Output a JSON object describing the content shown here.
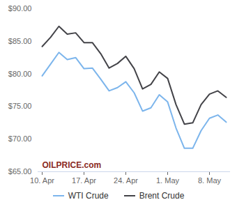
{
  "chart_data": {
    "type": "line",
    "categories": [
      "10. Apr",
      null,
      null,
      null,
      null,
      "17. Apr",
      null,
      null,
      null,
      null,
      "24. Apr",
      null,
      null,
      null,
      null,
      "1. May",
      null,
      null,
      null,
      null,
      "8. May",
      null,
      null
    ],
    "series": [
      {
        "name": "WTI Crude",
        "color": "#7cb5ec",
        "values": [
          79.7,
          81.5,
          83.3,
          82.2,
          82.5,
          80.8,
          80.9,
          79.2,
          77.4,
          77.9,
          78.8,
          77.1,
          74.3,
          74.8,
          76.8,
          75.7,
          71.7,
          68.6,
          68.6,
          71.3,
          73.2,
          73.7,
          72.6
        ]
      },
      {
        "name": "Brent Crude",
        "color": "#434348",
        "values": [
          84.2,
          85.6,
          87.3,
          86.1,
          86.3,
          84.8,
          84.8,
          83.1,
          80.9,
          81.6,
          82.7,
          80.8,
          77.7,
          78.4,
          80.3,
          79.3,
          75.3,
          72.3,
          72.5,
          75.3,
          76.9,
          77.4,
          76.4
        ]
      }
    ],
    "ylim": [
      65,
      90
    ],
    "yticks": [
      {
        "value": 65,
        "label": "$65.00"
      },
      {
        "value": 70,
        "label": "$70.00"
      },
      {
        "value": 75,
        "label": "$75.00"
      },
      {
        "value": 80,
        "label": "$80.00"
      },
      {
        "value": 85,
        "label": "$85.00"
      },
      {
        "value": 90,
        "label": "$90.00"
      }
    ],
    "grid": false,
    "legend": "bottom",
    "annotations": [
      "OILPRICE.com"
    ]
  }
}
